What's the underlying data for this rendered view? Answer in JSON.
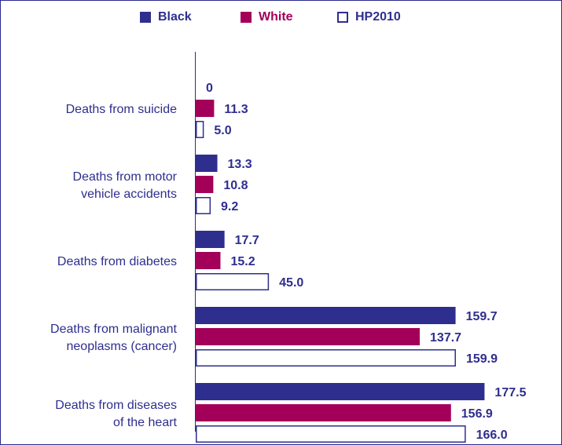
{
  "chart_data": {
    "type": "bar",
    "orientation": "horizontal",
    "title": "",
    "xlabel": "",
    "ylabel": "",
    "categories": [
      [
        "Deaths from suicide"
      ],
      [
        "Deaths from motor",
        "vehicle accidents"
      ],
      [
        "Deaths from diabetes"
      ],
      [
        "Deaths from malignant",
        "neoplasms (cancer)"
      ],
      [
        "Deaths from diseases",
        "of the heart"
      ]
    ],
    "series": [
      {
        "name": "Black",
        "color": "#2e2e8f",
        "fill": "solid",
        "values": [
          0,
          13.3,
          17.7,
          159.7,
          177.5
        ]
      },
      {
        "name": "White",
        "color": "#a3005a",
        "fill": "solid",
        "values": [
          11.3,
          10.8,
          15.2,
          137.7,
          156.9
        ]
      },
      {
        "name": "HP2010",
        "color": "#2e2e8f",
        "fill": "outline",
        "values": [
          5.0,
          9.2,
          45.0,
          159.9,
          166.0
        ]
      }
    ],
    "value_labels": [
      [
        "0",
        "13.3",
        "17.7",
        "159.7",
        "177.5"
      ],
      [
        "11.3",
        "10.8",
        "15.2",
        "137.7",
        "156.9"
      ],
      [
        "5.0",
        "9.2",
        "45.0",
        "159.9",
        "166.0"
      ]
    ],
    "xlim": [
      0,
      180
    ],
    "grid": false,
    "legend_position": "top-center",
    "label_color": "#2e2e8f"
  }
}
